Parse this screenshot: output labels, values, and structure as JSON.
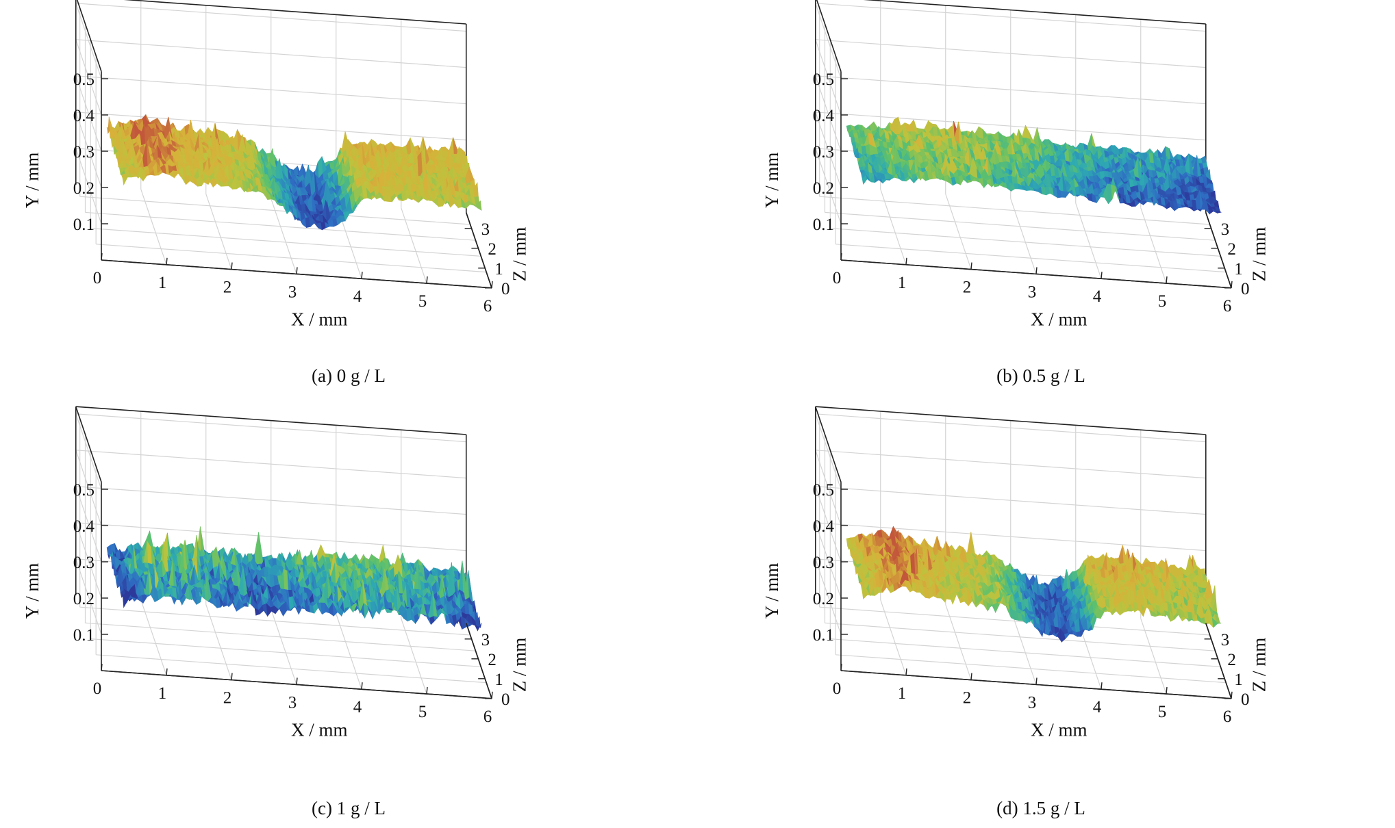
{
  "figure": {
    "colors": {
      "grid": "#d4d4d4",
      "axis": "#222222",
      "background": "#ffffff"
    },
    "colormap": [
      "#2d3a9c",
      "#2f6fc4",
      "#2eaab2",
      "#5fc16b",
      "#bcc33e",
      "#d7b13a",
      "#c2573b"
    ]
  },
  "chart_data": [
    {
      "type": "surface3d",
      "caption": "(a) 0 g / L",
      "xlabel": "X / mm",
      "ylabel": "Y / mm",
      "zlabel": "Z / mm",
      "x_ticks": [
        "0",
        "1",
        "2",
        "3",
        "4",
        "5",
        "6"
      ],
      "y_ticks": [
        "0.1",
        "0.2",
        "0.3",
        "0.4",
        "0.5"
      ],
      "z_ticks": [
        "0",
        "1",
        "2",
        "3"
      ],
      "xlim": [
        0,
        6
      ],
      "ylim": [
        0,
        0.5
      ],
      "zlim": [
        0,
        3
      ],
      "profile": {
        "x": [
          0.4,
          1.0,
          1.5,
          2.0,
          2.5,
          2.9,
          3.2,
          3.5,
          3.8,
          4.1,
          4.5,
          5.0,
          5.5,
          5.9
        ],
        "y": [
          0.2,
          0.23,
          0.21,
          0.205,
          0.19,
          0.15,
          0.12,
          0.11,
          0.14,
          0.2,
          0.205,
          0.2,
          0.2,
          0.2
        ]
      },
      "texture": 0.012
    },
    {
      "type": "surface3d",
      "caption": "(b) 0.5 g / L",
      "xlabel": "X / mm",
      "ylabel": "Y / mm",
      "zlabel": "Z / mm",
      "x_ticks": [
        "0",
        "1",
        "2",
        "3",
        "4",
        "5",
        "6"
      ],
      "y_ticks": [
        "0.1",
        "0.2",
        "0.3",
        "0.4",
        "0.5"
      ],
      "z_ticks": [
        "0",
        "1",
        "2",
        "3"
      ],
      "xlim": [
        0,
        6
      ],
      "ylim": [
        0,
        0.5
      ],
      "zlim": [
        0,
        3
      ],
      "profile": {
        "x": [
          0.4,
          1.0,
          1.5,
          2.0,
          2.5,
          3.0,
          3.5,
          4.0,
          4.5,
          5.0,
          5.5,
          5.9
        ],
        "y": [
          0.2,
          0.21,
          0.215,
          0.215,
          0.21,
          0.205,
          0.2,
          0.195,
          0.19,
          0.19,
          0.185,
          0.18
        ]
      },
      "texture": 0.01
    },
    {
      "type": "surface3d",
      "caption": "(c) 1 g / L",
      "xlabel": "X / mm",
      "ylabel": "Y / mm",
      "zlabel": "Z / mm",
      "x_ticks": [
        "0",
        "1",
        "2",
        "3",
        "4",
        "5",
        "6"
      ],
      "y_ticks": [
        "0.1",
        "0.2",
        "0.3",
        "0.4",
        "0.5"
      ],
      "z_ticks": [
        "0",
        "1",
        "2",
        "3"
      ],
      "xlim": [
        0,
        6
      ],
      "ylim": [
        0,
        0.5
      ],
      "zlim": [
        0,
        3
      ],
      "profile": {
        "x": [
          0.4,
          1.0,
          1.5,
          2.0,
          2.5,
          3.0,
          3.5,
          4.0,
          4.5,
          5.0,
          5.5,
          5.9
        ],
        "y": [
          0.17,
          0.19,
          0.185,
          0.18,
          0.175,
          0.18,
          0.185,
          0.19,
          0.19,
          0.185,
          0.18,
          0.175
        ]
      },
      "texture": 0.016
    },
    {
      "type": "surface3d",
      "caption": "(d) 1.5 g / L",
      "xlabel": "X / mm",
      "ylabel": "Y / mm",
      "zlabel": "Z / mm",
      "x_ticks": [
        "0",
        "1",
        "2",
        "3",
        "4",
        "5",
        "6"
      ],
      "y_ticks": [
        "0.1",
        "0.2",
        "0.3",
        "0.4",
        "0.5"
      ],
      "z_ticks": [
        "0",
        "1",
        "2",
        "3"
      ],
      "xlim": [
        0,
        6
      ],
      "ylim": [
        0,
        0.5
      ],
      "zlim": [
        0,
        3
      ],
      "profile": {
        "x": [
          0.4,
          1.0,
          1.5,
          2.0,
          2.5,
          2.9,
          3.2,
          3.5,
          3.8,
          4.1,
          4.5,
          5.0,
          5.5,
          5.9
        ],
        "y": [
          0.19,
          0.22,
          0.2,
          0.19,
          0.18,
          0.15,
          0.12,
          0.11,
          0.13,
          0.19,
          0.2,
          0.19,
          0.185,
          0.18
        ]
      },
      "texture": 0.012
    }
  ]
}
